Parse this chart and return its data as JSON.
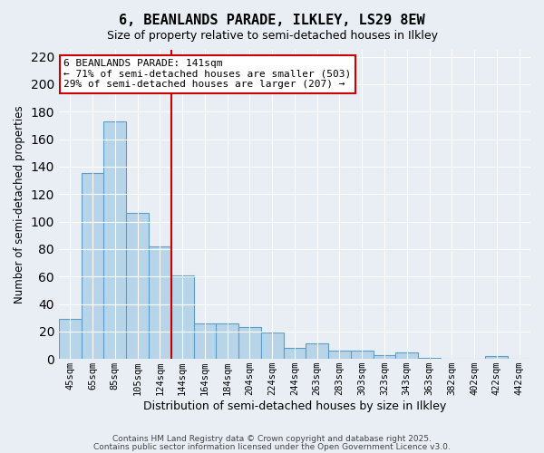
{
  "title": "6, BEANLANDS PARADE, ILKLEY, LS29 8EW",
  "subtitle": "Size of property relative to semi-detached houses in Ilkley",
  "xlabel": "Distribution of semi-detached houses by size in Ilkley",
  "ylabel": "Number of semi-detached properties",
  "bar_labels": [
    "45sqm",
    "65sqm",
    "85sqm",
    "105sqm",
    "124sqm",
    "144sqm",
    "164sqm",
    "184sqm",
    "204sqm",
    "224sqm",
    "244sqm",
    "263sqm",
    "283sqm",
    "303sqm",
    "323sqm",
    "343sqm",
    "363sqm",
    "382sqm",
    "402sqm",
    "422sqm",
    "442sqm"
  ],
  "bar_values": [
    29,
    135,
    173,
    106,
    82,
    61,
    26,
    26,
    23,
    19,
    8,
    11,
    6,
    6,
    3,
    5,
    1,
    0,
    0,
    2,
    0
  ],
  "bar_color": "#b8d4e8",
  "bar_edge_color": "#5a9ec9",
  "bg_color": "#e8eef4",
  "grid_color": "#ffffff",
  "vline_x_index": 5,
  "vline_color": "#cc0000",
  "annotation_title": "6 BEANLANDS PARADE: 141sqm",
  "annotation_line1": "← 71% of semi-detached houses are smaller (503)",
  "annotation_line2": "29% of semi-detached houses are larger (207) →",
  "annotation_box_color": "#ffffff",
  "annotation_box_edge": "#cc0000",
  "ylim": [
    0,
    225
  ],
  "yticks": [
    0,
    20,
    40,
    60,
    80,
    100,
    120,
    140,
    160,
    180,
    200,
    220
  ],
  "footer1": "Contains HM Land Registry data © Crown copyright and database right 2025.",
  "footer2": "Contains public sector information licensed under the Open Government Licence v3.0."
}
